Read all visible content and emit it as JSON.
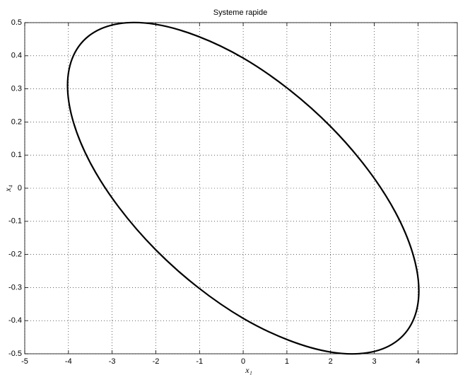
{
  "chart_data": {
    "type": "line",
    "title": "Systeme rapide",
    "xlabel": "x₁",
    "ylabel": "x₄",
    "xlim": [
      -5,
      4.9
    ],
    "xticks": [
      -5,
      -4,
      -3,
      -2,
      -1,
      0,
      1,
      2,
      3,
      4
    ],
    "ylim": [
      -0.5,
      0.5
    ],
    "yticks": [
      -0.5,
      -0.4,
      -0.3,
      -0.2,
      -0.1,
      0,
      0.1,
      0.2,
      0.3,
      0.4,
      0.5
    ],
    "grid": true,
    "series": [
      {
        "color": "#000000",
        "x": [
          4.02,
          3.883,
          3.481,
          2.843,
          2.01,
          1.04,
          0,
          -1.04,
          -2.01,
          -2.843,
          -3.481,
          -3.883,
          -4.02,
          -3.883,
          -3.481,
          -2.843,
          -2.01,
          -1.04,
          0,
          1.04,
          2.01,
          2.843,
          3.481,
          3.883,
          4.02
        ],
        "values": [
          -0.31,
          -0.198,
          -0.072,
          0.058,
          0.185,
          0.299,
          0.393,
          0.459,
          0.495,
          0.497,
          0.465,
          0.401,
          0.31,
          0.198,
          0.072,
          -0.058,
          -0.185,
          -0.299,
          -0.393,
          -0.459,
          -0.495,
          -0.497,
          -0.465,
          -0.401,
          -0.31
        ]
      }
    ]
  }
}
